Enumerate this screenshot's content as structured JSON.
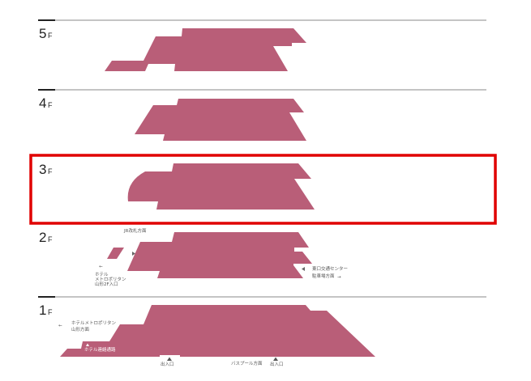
{
  "colors": {
    "floor_fill": "#b95e78",
    "highlight": "#e00000",
    "line": "#888888"
  },
  "floors": [
    {
      "number": "5",
      "suffix": "F"
    },
    {
      "number": "4",
      "suffix": "F"
    },
    {
      "number": "3",
      "suffix": "F",
      "highlighted": true
    },
    {
      "number": "2",
      "suffix": "F"
    },
    {
      "number": "1",
      "suffix": "F"
    }
  ],
  "labels_2f": {
    "jr_gate": "JR改札方面",
    "hotel_line1": "ホテル",
    "hotel_line2": "メトロポリタン",
    "hotel_line3": "山形2F入口",
    "east_line1": "東口交通センター",
    "east_line2": "駐車場方面"
  },
  "labels_1f": {
    "hotel_line1": "ホテルメトロポリタン",
    "hotel_line2": "山形方面",
    "hotel_passage": "ホテル連絡通路",
    "entrance_1": "出入口",
    "bus_pool": "バスプール方面",
    "entrance_2": "出入口"
  }
}
